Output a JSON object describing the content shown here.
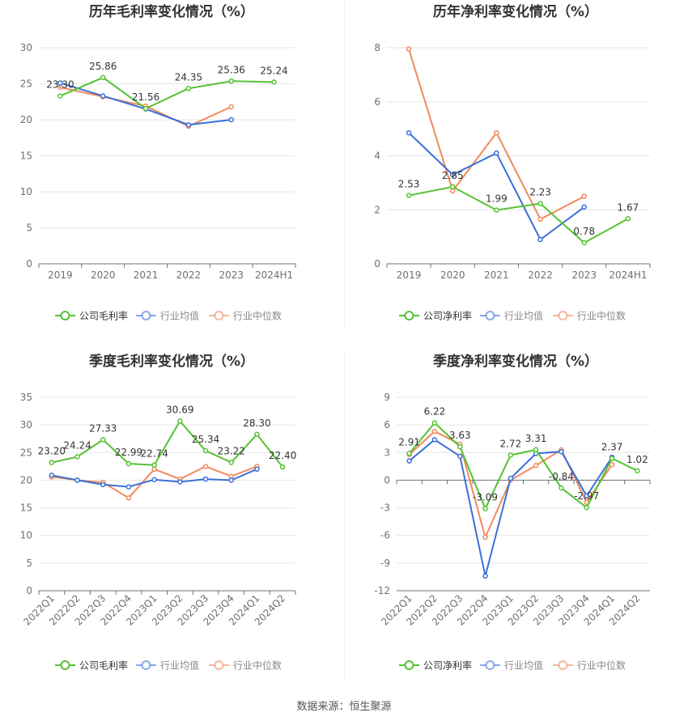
{
  "source": "数据来源：恒生聚源",
  "legend_labels": [
    "公司毛利率",
    "行业均值",
    "行业中位数",
    "公司净利率"
  ],
  "colors": {
    "company": "#55c232",
    "industry_avg": "#3b6fd8",
    "industry_median": "#f08a5d"
  },
  "chart_data": [
    {
      "type": "line",
      "title": "历年毛利率变化情况（%）",
      "categories": [
        "2019",
        "2020",
        "2021",
        "2022",
        "2023",
        "2024H1"
      ],
      "ylim": [
        0,
        30
      ],
      "yticks": [
        0,
        5,
        10,
        15,
        20,
        25,
        30
      ],
      "grid": true,
      "legend_position": "bottom",
      "series": [
        {
          "name": "公司毛利率",
          "values": [
            23.3,
            25.86,
            21.56,
            24.35,
            25.36,
            25.24
          ],
          "labels": [
            "23.30",
            "25.86",
            "21.56",
            "24.35",
            "25.36",
            "25.24"
          ]
        },
        {
          "name": "行业均值",
          "values": [
            25.1,
            23.3,
            21.5,
            19.3,
            20.0,
            null
          ]
        },
        {
          "name": "行业中位数",
          "values": [
            24.5,
            23.2,
            21.9,
            19.1,
            21.8,
            null
          ]
        }
      ]
    },
    {
      "type": "line",
      "title": "历年净利率变化情况（%）",
      "categories": [
        "2019",
        "2020",
        "2021",
        "2022",
        "2023",
        "2024H1"
      ],
      "ylim": [
        0,
        8
      ],
      "yticks": [
        0,
        2,
        4,
        6,
        8
      ],
      "grid": true,
      "legend_position": "bottom",
      "series": [
        {
          "name": "公司净利率",
          "values": [
            2.53,
            2.85,
            1.99,
            2.23,
            0.78,
            1.67
          ],
          "labels": [
            "2.53",
            "2.85",
            "1.99",
            "2.23",
            "0.78",
            "1.67"
          ]
        },
        {
          "name": "行业均值",
          "values": [
            4.85,
            3.3,
            4.1,
            0.9,
            2.1,
            null
          ]
        },
        {
          "name": "行业中位数",
          "values": [
            7.95,
            2.7,
            4.85,
            1.65,
            2.5,
            null
          ]
        }
      ]
    },
    {
      "type": "line",
      "title": "季度毛利率变化情况（%）",
      "categories": [
        "2022Q1",
        "2022Q2",
        "2022Q3",
        "2022Q4",
        "2023Q1",
        "2023Q2",
        "2023Q3",
        "2023Q4",
        "2024Q1",
        "2024Q2"
      ],
      "ylim": [
        0,
        35
      ],
      "yticks": [
        0,
        5,
        10,
        15,
        20,
        25,
        30,
        35
      ],
      "grid": true,
      "legend_position": "bottom",
      "series": [
        {
          "name": "公司毛利率",
          "values": [
            23.2,
            24.24,
            27.33,
            22.99,
            22.74,
            30.69,
            25.34,
            23.22,
            28.3,
            22.4
          ],
          "labels": [
            "23.20",
            "24.24",
            "27.33",
            "22.99",
            "22.74",
            "30.69",
            "25.34",
            "23.22",
            "28.30",
            "22.40"
          ]
        },
        {
          "name": "行业均值",
          "values": [
            20.9,
            20.0,
            19.2,
            18.8,
            20.1,
            19.7,
            20.2,
            20.0,
            22.0,
            null
          ]
        },
        {
          "name": "行业中位数",
          "values": [
            20.6,
            20.0,
            19.6,
            16.8,
            22.0,
            20.2,
            22.5,
            20.7,
            22.5,
            null
          ]
        }
      ]
    },
    {
      "type": "line",
      "title": "季度净利率变化情况（%）",
      "categories": [
        "2022Q1",
        "2022Q2",
        "2022Q3",
        "2022Q4",
        "2023Q1",
        "2023Q2",
        "2023Q3",
        "2023Q4",
        "2024Q1",
        "2024Q2"
      ],
      "ylim": [
        -12,
        9
      ],
      "yticks": [
        -12,
        -9,
        -6,
        -3,
        0,
        3,
        6,
        9
      ],
      "grid": true,
      "legend_position": "bottom",
      "series": [
        {
          "name": "公司净利率",
          "values": [
            2.91,
            6.22,
            3.63,
            -3.09,
            2.72,
            3.31,
            -0.84,
            -2.97,
            2.37,
            1.02
          ],
          "labels": [
            "2.91",
            "6.22",
            "3.63",
            "-3.09",
            "2.72",
            "3.31",
            "-0.84",
            "-2.97",
            "2.37",
            "1.02"
          ]
        },
        {
          "name": "行业均值",
          "values": [
            2.1,
            4.4,
            2.6,
            -10.4,
            0.2,
            2.9,
            3.1,
            -1.7,
            2.5,
            null
          ]
        },
        {
          "name": "行业中位数",
          "values": [
            2.8,
            5.3,
            3.9,
            -6.2,
            0.0,
            1.6,
            3.3,
            -2.4,
            1.7,
            null
          ]
        }
      ]
    }
  ]
}
